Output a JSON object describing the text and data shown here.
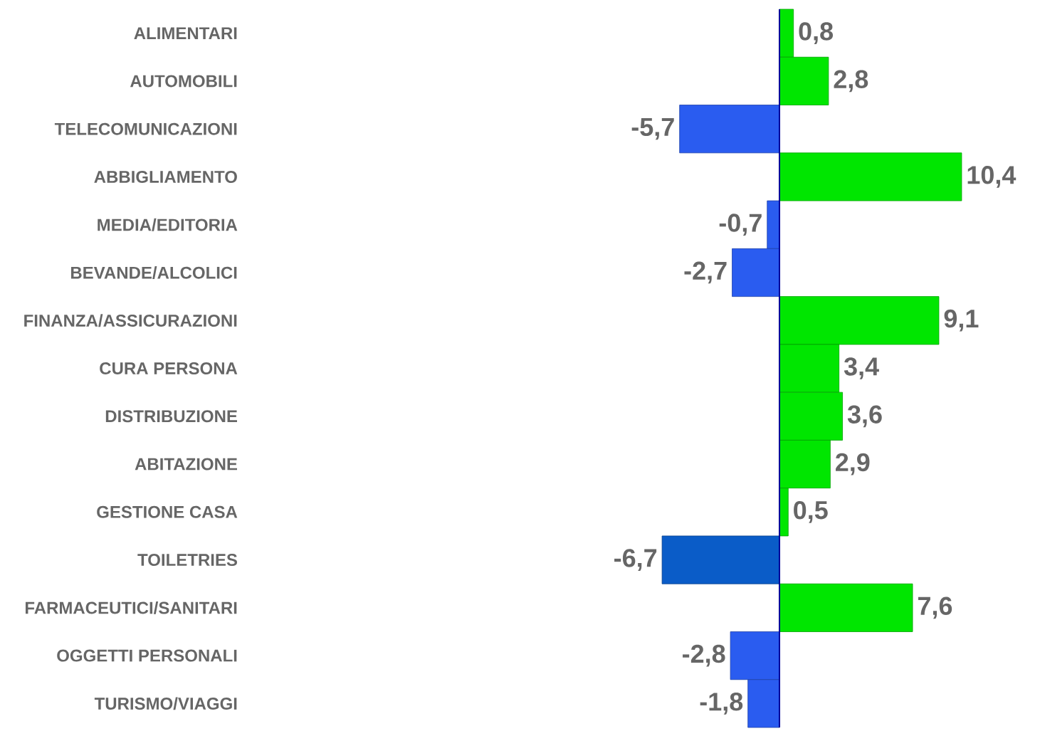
{
  "chart_data": {
    "type": "bar",
    "orientation": "horizontal",
    "ref_lines": [
      {
        "axis": "x",
        "value": 0,
        "color": "#000099"
      }
    ],
    "categories": [
      "ALIMENTARI",
      "AUTOMOBILI",
      "TELECOMUNICAZIONI",
      "ABBIGLIAMENTO",
      "MEDIA/EDITORIA",
      "BEVANDE/ALCOLICI",
      "FINANZA/ASSICURAZIONI",
      "CURA PERSONA",
      "DISTRIBUZIONE",
      "ABITAZIONE",
      "GESTIONE CASA",
      "TOILETRIES",
      "FARMACEUTICI/SANITARI",
      "OGGETTI PERSONALI",
      "TURISMO/VIAGGI"
    ],
    "values": [
      0.8,
      2.8,
      -5.7,
      10.4,
      -0.7,
      -2.7,
      9.1,
      3.4,
      3.6,
      2.9,
      0.5,
      -6.7,
      7.6,
      -2.8,
      -1.8
    ],
    "value_labels": [
      "0,8",
      "2,8",
      "-5,7",
      "10,4",
      "-0,7",
      "-2,7",
      "9,1",
      "3,4",
      "3,6",
      "2,9",
      "0,5",
      "-6,7",
      "7,6",
      "-2,8",
      "-1,8"
    ],
    "colors": [
      "#00e600",
      "#00e600",
      "#2a5cf0",
      "#00e600",
      "#2a5cf0",
      "#2a5cf0",
      "#00e600",
      "#00e600",
      "#00e600",
      "#00e600",
      "#00e600",
      "#0a5cc8",
      "#00e600",
      "#2a5cf0",
      "#2a5cf0"
    ]
  }
}
